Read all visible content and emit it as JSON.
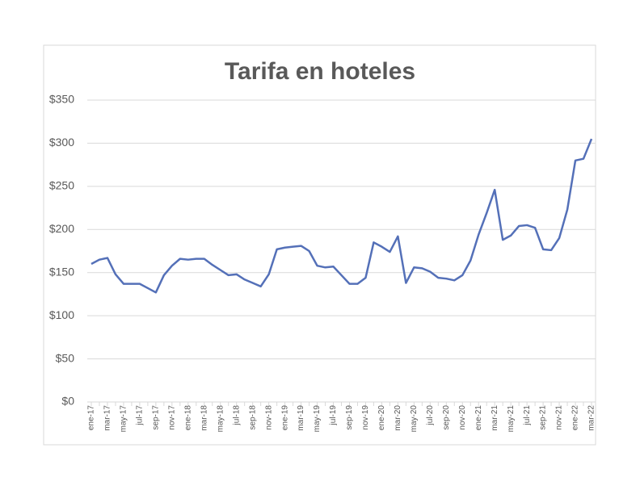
{
  "chart_data": {
    "type": "line",
    "title": "Tarifa en hoteles",
    "categories": [
      "ene-17",
      null,
      "mar-17",
      null,
      "may-17",
      null,
      "jul-17",
      null,
      "sep-17",
      null,
      "nov-17",
      null,
      "ene-18",
      null,
      "mar-18",
      null,
      "may-18",
      null,
      "jul-18",
      null,
      "sep-18",
      null,
      "nov-18",
      null,
      "ene-19",
      null,
      "mar-19",
      null,
      "may-19",
      null,
      "jul-19",
      null,
      "sep-19",
      null,
      "nov-19",
      null,
      "ene-20",
      null,
      "mar-20",
      null,
      "may-20",
      null,
      "jul-20",
      null,
      "sep-20",
      null,
      "nov-20",
      null,
      "ene-21",
      null,
      "mar-21",
      null,
      "may-21",
      null,
      "jul-21",
      null,
      "sep-21",
      null,
      "nov-21",
      null,
      "ene-22",
      null,
      "mar-22"
    ],
    "series": [
      {
        "color": "#5470b8",
        "values": [
          160,
          165,
          167,
          148,
          137,
          137,
          137,
          132,
          127,
          147,
          158,
          166,
          165,
          166,
          166,
          159,
          153,
          147,
          148,
          142,
          138,
          134,
          148,
          177,
          179,
          180,
          181,
          175,
          158,
          156,
          157,
          147,
          137,
          137,
          144,
          185,
          180,
          174,
          192,
          138,
          156,
          155,
          151,
          144,
          143,
          141,
          147,
          164,
          194,
          219,
          246,
          188,
          193,
          204,
          205,
          202,
          177,
          176,
          190,
          223,
          280,
          282,
          305
        ]
      }
    ],
    "ylim": [
      0,
      350
    ],
    "yticks": [
      {
        "value": 0,
        "label": "$0"
      },
      {
        "value": 50,
        "label": "$50"
      },
      {
        "value": 100,
        "label": "$100"
      },
      {
        "value": 150,
        "label": "$150"
      },
      {
        "value": 200,
        "label": "$200"
      },
      {
        "value": 250,
        "label": "$250"
      },
      {
        "value": 300,
        "label": "$300"
      },
      {
        "value": 350,
        "label": "$350"
      }
    ],
    "grid": true
  }
}
